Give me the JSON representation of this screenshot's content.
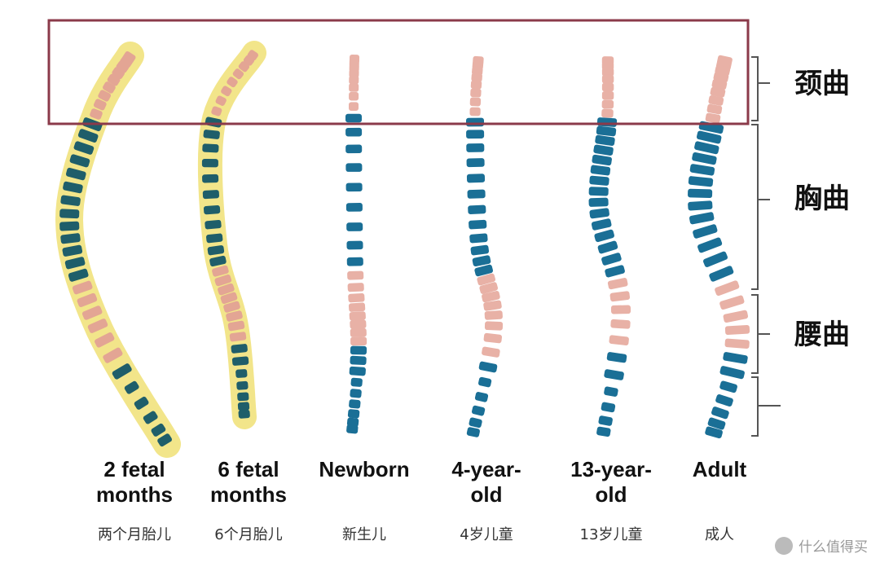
{
  "stages": [
    {
      "lines": [
        "2 fetal",
        "months"
      ],
      "label_cn": "两个月胎儿"
    },
    {
      "lines": [
        "6 fetal",
        "months"
      ],
      "label_cn": "6个月胎儿"
    },
    {
      "lines": [
        "Newborn"
      ],
      "label_cn": "新生儿"
    },
    {
      "lines": [
        "4-year-",
        "old"
      ],
      "label_cn": "4岁儿童"
    },
    {
      "lines": [
        "13-year-",
        "old"
      ],
      "label_cn": "13岁儿童"
    },
    {
      "lines": [
        "Adult"
      ],
      "label_cn": "成人"
    }
  ],
  "regions": [
    {
      "label": "颈曲"
    },
    {
      "label": "胸曲"
    },
    {
      "label": "腰曲"
    }
  ],
  "watermark": "什么值得买"
}
